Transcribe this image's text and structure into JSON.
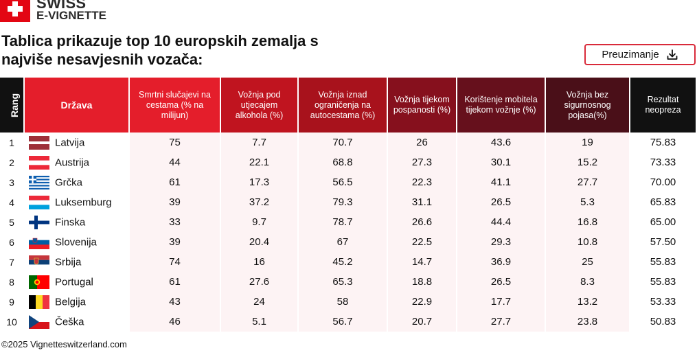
{
  "brand": {
    "line1": "SWISS",
    "line2": "E-VIGNETTE",
    "flag_icon": "swiss-flag-icon"
  },
  "title_line1": "Tablica prikazuje top 10 europskih zemalja s",
  "title_line2": "najviše nesavjesnih vozača:",
  "download": {
    "label": "Preuzimanje",
    "icon": "download-icon"
  },
  "footer": "©2025 Vignetteswitzerland.com",
  "colors": {
    "brand_red": "#e41e2b",
    "accent_border": "#d92a3a",
    "row_tint": "#fdf3f4",
    "header_gradient": [
      "#e41e2b",
      "#c0141f",
      "#a8121c",
      "#86101d",
      "#66101c",
      "#4a0f18",
      "#111111"
    ]
  },
  "chart_data": {
    "type": "table",
    "columns": [
      "Rang",
      "Država",
      "Smrtni slučajevi na cestama (% na milijun)",
      "Vožnja pod utjecajem alkohola (%)",
      "Vožnja iznad ograničenja na autocestama (%)",
      "Vožnja tijekom pospanosti (%)",
      "Korištenje mobitela tijekom vožnje (%)",
      "Vožnja bez sigurnosnog pojasa(%)",
      "Rezultat neopreza"
    ],
    "rows": [
      {
        "rank": "1",
        "country": "Latvija",
        "flag": "latvia-flag-icon",
        "values": [
          "75",
          "7.7",
          "70.7",
          "26",
          "43.6",
          "19",
          "75.83"
        ]
      },
      {
        "rank": "2",
        "country": "Austrija",
        "flag": "austria-flag-icon",
        "values": [
          "44",
          "22.1",
          "68.8",
          "27.3",
          "30.1",
          "15.2",
          "73.33"
        ]
      },
      {
        "rank": "3",
        "country": "Grčka",
        "flag": "greece-flag-icon",
        "values": [
          "61",
          "17.3",
          "56.5",
          "22.3",
          "41.1",
          "27.7",
          "70.00"
        ]
      },
      {
        "rank": "4",
        "country": "Luksemburg",
        "flag": "luxembourg-flag-icon",
        "values": [
          "39",
          "37.2",
          "79.3",
          "31.1",
          "26.5",
          "5.3",
          "65.83"
        ]
      },
      {
        "rank": "5",
        "country": "Finska",
        "flag": "finland-flag-icon",
        "values": [
          "33",
          "9.7",
          "78.7",
          "26.6",
          "44.4",
          "16.8",
          "65.00"
        ]
      },
      {
        "rank": "6",
        "country": "Slovenija",
        "flag": "slovenia-flag-icon",
        "values": [
          "39",
          "20.4",
          "67",
          "22.5",
          "29.3",
          "10.8",
          "57.50"
        ]
      },
      {
        "rank": "7",
        "country": "Srbija",
        "flag": "serbia-flag-icon",
        "values": [
          "74",
          "16",
          "45.2",
          "14.7",
          "36.9",
          "25",
          "55.83"
        ]
      },
      {
        "rank": "8",
        "country": "Portugal",
        "flag": "portugal-flag-icon",
        "values": [
          "61",
          "27.6",
          "65.3",
          "18.8",
          "26.5",
          "8.3",
          "55.83"
        ]
      },
      {
        "rank": "9",
        "country": "Belgija",
        "flag": "belgium-flag-icon",
        "values": [
          "43",
          "24",
          "58",
          "22.9",
          "17.7",
          "13.2",
          "53.33"
        ]
      },
      {
        "rank": "10",
        "country": "Češka",
        "flag": "czechia-flag-icon",
        "values": [
          "46",
          "5.1",
          "56.7",
          "20.7",
          "27.7",
          "23.8",
          "50.83"
        ]
      }
    ]
  }
}
